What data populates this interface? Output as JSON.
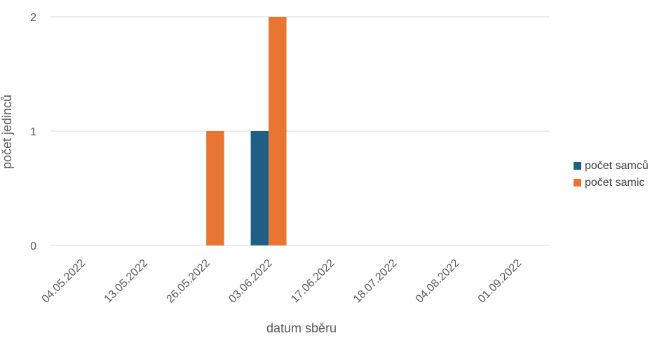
{
  "chart_data": {
    "type": "bar",
    "title": "",
    "xlabel": "datum sběru",
    "ylabel": "počet jedinců",
    "ylim": [
      0,
      2
    ],
    "yticks": [
      0,
      1,
      2
    ],
    "grid": true,
    "legend_position": "right",
    "categories": [
      "04.05.2022",
      "13.05.2022",
      "26.05.2022",
      "03.06.2022",
      "17.06.2022",
      "18.07.2022",
      "04.08.2022",
      "01.09.2022"
    ],
    "series": [
      {
        "name": "počet samců",
        "color": "#1f5f85",
        "values": [
          0,
          0,
          0,
          1,
          0,
          0,
          0,
          0
        ]
      },
      {
        "name": "počet samic",
        "color": "#e97532",
        "values": [
          0,
          0,
          1,
          2,
          0,
          0,
          0,
          0
        ]
      }
    ]
  }
}
